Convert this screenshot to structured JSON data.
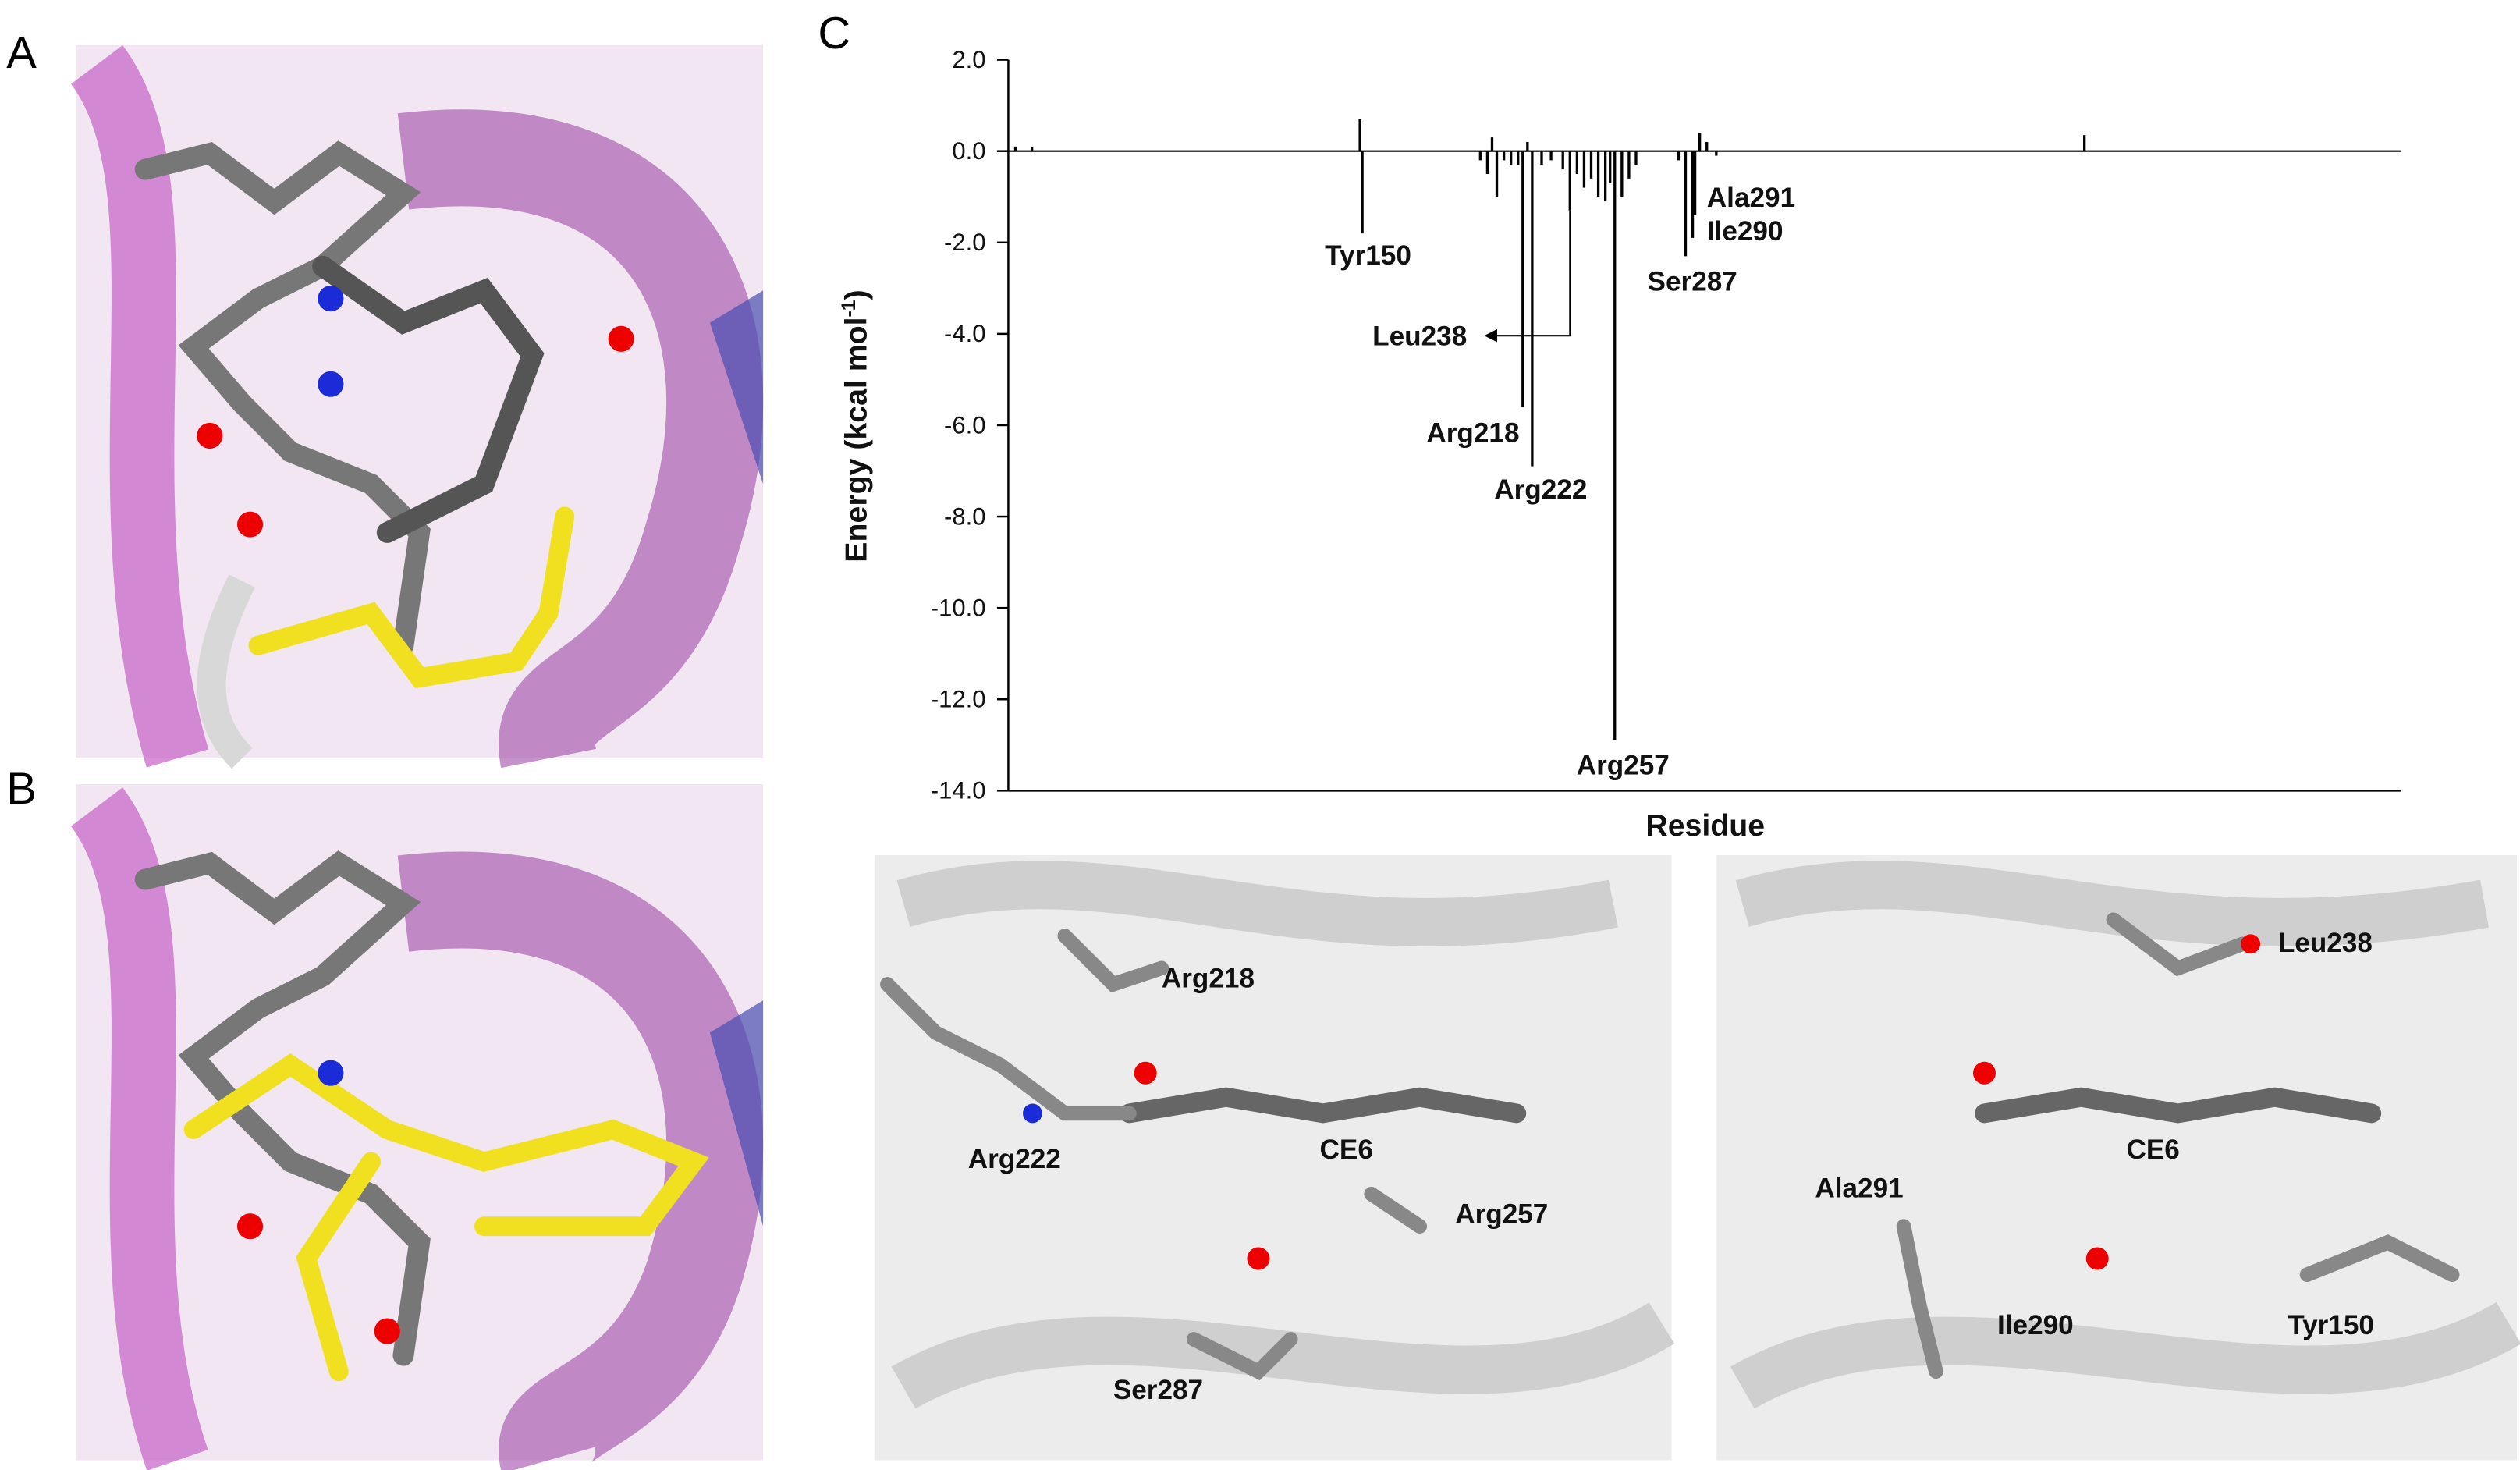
{
  "panels": [
    "A",
    "B",
    "C"
  ],
  "chart_data": {
    "type": "bar",
    "ylabel": [
      "Energy (kcal mol",
      "-1",
      ")"
    ],
    "xlabel": "Residue",
    "x": [
      3,
      10,
      149,
      150,
      200,
      203,
      205,
      207,
      210,
      213,
      216,
      218,
      220,
      222,
      226,
      230,
      235,
      238,
      241,
      244,
      247,
      250,
      253,
      255,
      257,
      260,
      263,
      266,
      284,
      287,
      290,
      291,
      293,
      296,
      300,
      456
    ],
    "values": [
      0.1,
      0.08,
      0.7,
      -1.8,
      -0.2,
      -0.5,
      0.3,
      -1.0,
      -0.2,
      -0.3,
      -0.3,
      -5.6,
      0.2,
      -6.9,
      -0.3,
      -0.2,
      -0.4,
      -1.3,
      -0.5,
      -0.8,
      -0.6,
      -1.0,
      -1.1,
      -0.7,
      -12.9,
      -1.0,
      -0.6,
      -0.3,
      -0.2,
      -2.3,
      -1.9,
      -1.4,
      0.4,
      0.2,
      -0.1,
      0.35
    ],
    "labels": [
      null,
      null,
      null,
      "Tyr150",
      null,
      null,
      null,
      null,
      null,
      null,
      null,
      "Arg218",
      null,
      "Arg222",
      null,
      null,
      null,
      "Leu238",
      null,
      null,
      null,
      null,
      null,
      null,
      "Arg257",
      null,
      null,
      null,
      null,
      "Ser287",
      "Ile290",
      "Ala291",
      null,
      null,
      null,
      null
    ],
    "color": "#000000",
    "xlim": [
      0,
      590
    ],
    "ylim": [
      -14,
      2
    ],
    "yticks": [
      {
        "value": -14,
        "label": "-14.0"
      },
      {
        "value": -12,
        "label": "-12.0"
      },
      {
        "value": -10,
        "label": "-10.0"
      },
      {
        "value": -8,
        "label": "-8.0"
      },
      {
        "value": -6,
        "label": "-6.0"
      },
      {
        "value": -4,
        "label": "-4.0"
      },
      {
        "value": -2,
        "label": "-2.0"
      },
      {
        "value": 0,
        "label": "0.0"
      },
      {
        "value": 2,
        "label": "2.0"
      }
    ]
  },
  "images": [
    {
      "labels": [
        "Arg218",
        "Arg222",
        "CE6",
        "Arg257",
        "Ser287"
      ]
    },
    {
      "labels": [
        "Leu238",
        "Ala291",
        "CE6",
        "Ile290",
        "Tyr150"
      ]
    }
  ]
}
